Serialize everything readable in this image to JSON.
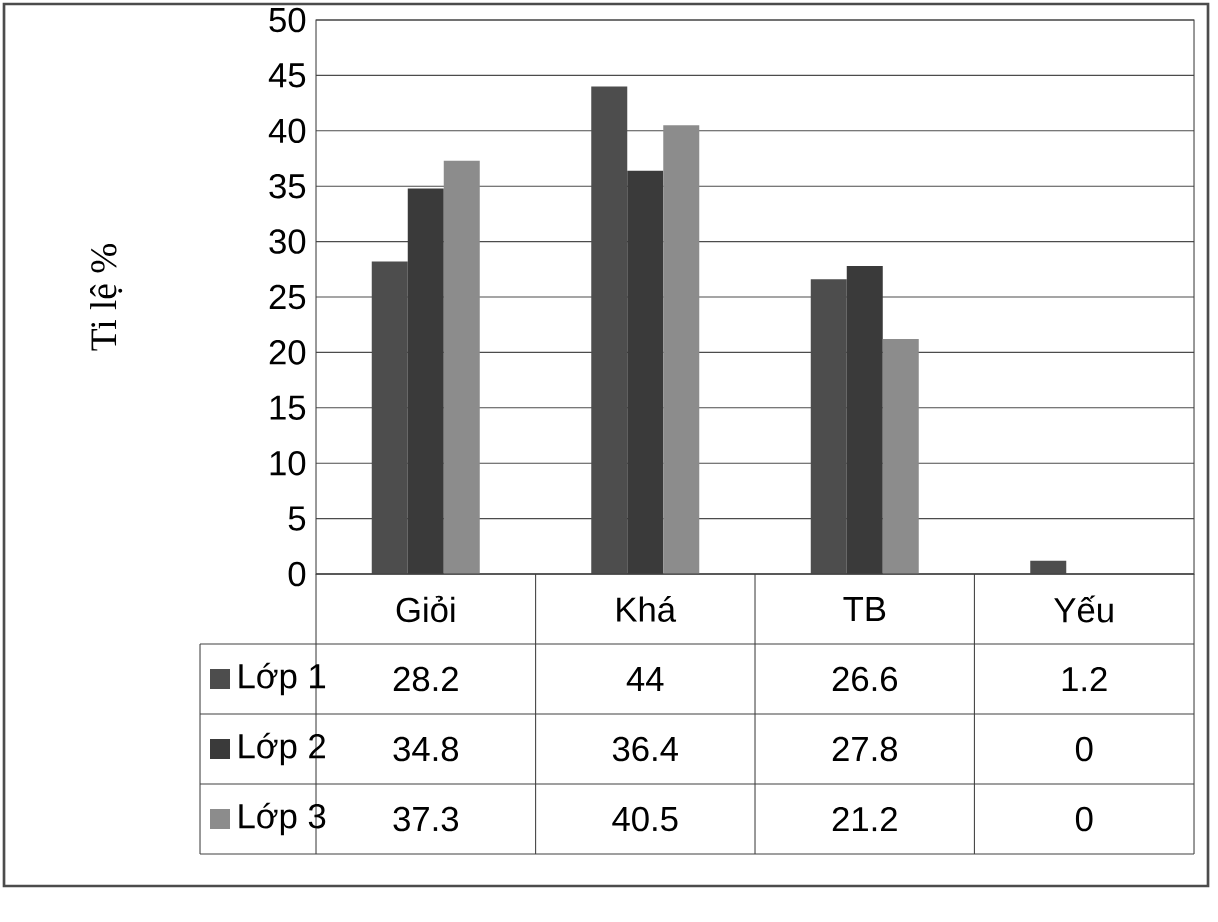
{
  "chart_data": {
    "type": "bar",
    "ylabel": "Ti lệ %",
    "categories": [
      "Giỏi",
      "Khá",
      "TB",
      "Yếu"
    ],
    "series": [
      {
        "name": "Lớp 1",
        "color": "#4d4d4d",
        "values": [
          28.2,
          44,
          26.6,
          1.2
        ]
      },
      {
        "name": "Lớp 2",
        "color": "#3a3a3a",
        "values": [
          34.8,
          36.4,
          27.8,
          0
        ]
      },
      {
        "name": "Lớp 3",
        "color": "#8c8c8c",
        "values": [
          37.3,
          40.5,
          21.2,
          0
        ]
      }
    ],
    "ylim": [
      0,
      50
    ],
    "yticks": [
      0,
      5,
      10,
      15,
      20,
      25,
      30,
      35,
      40,
      45,
      50
    ],
    "grid": "y",
    "legend": "bottom",
    "data_labels": true
  }
}
